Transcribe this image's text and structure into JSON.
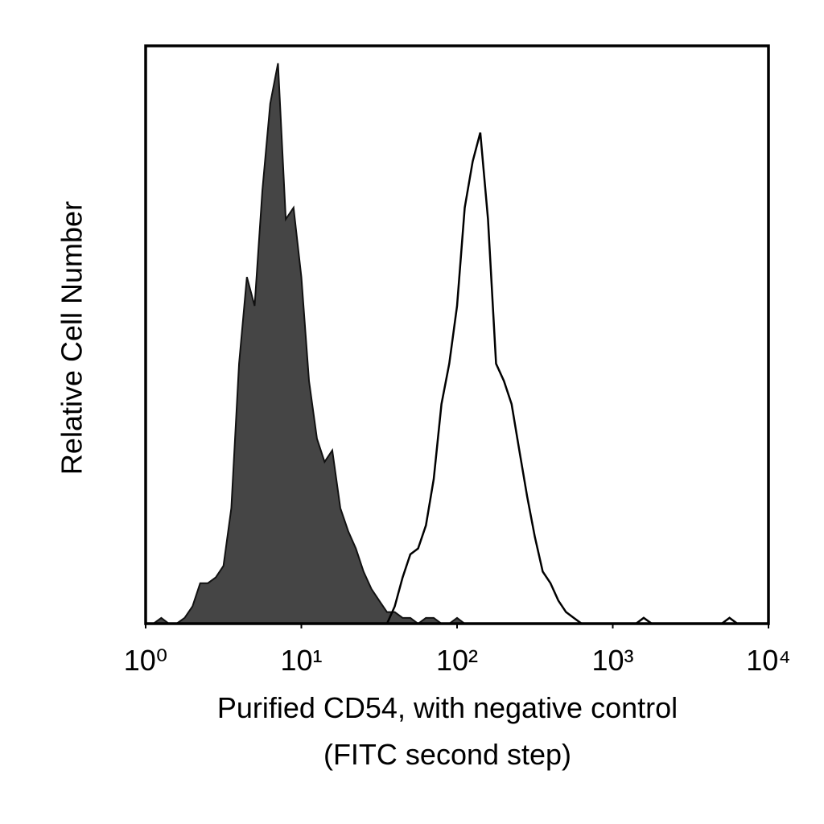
{
  "chart_data": {
    "type": "histogram-line",
    "ylabel": "Relative Cell Number",
    "xlabel": [
      "Purified CD54, with negative control",
      "(FITC second step)"
    ],
    "xscale": "log",
    "xlim": [
      1,
      10000
    ],
    "xticks": [
      {
        "value": 1,
        "label": "10⁰"
      },
      {
        "value": 10,
        "label": "10¹"
      },
      {
        "value": 100,
        "label": "10²"
      },
      {
        "value": 1000,
        "label": "10³"
      },
      {
        "value": 10000,
        "label": "10⁴"
      }
    ],
    "ylim": [
      0,
      100
    ],
    "grid": false,
    "x": [
      1,
      1.12,
      1.26,
      1.41,
      1.58,
      1.78,
      2,
      2.24,
      2.51,
      2.82,
      3.16,
      3.55,
      3.98,
      4.47,
      5.01,
      5.62,
      6.31,
      7.08,
      7.94,
      8.91,
      10,
      11.2,
      12.6,
      14.1,
      15.8,
      17.8,
      20,
      22.4,
      25.1,
      28.2,
      31.6,
      35.5,
      39.8,
      44.7,
      50.1,
      56.2,
      63.1,
      70.8,
      79.4,
      89.1,
      100,
      112,
      126,
      141,
      158,
      178,
      200,
      224,
      251,
      282,
      316,
      355,
      398,
      447,
      501,
      562,
      631,
      708,
      794,
      891,
      1000,
      1120,
      1260,
      1410,
      1580,
      1780,
      2000,
      2240,
      2510,
      2820,
      3160,
      3550,
      3980,
      4470,
      5010,
      5620,
      6310,
      7080,
      7940,
      8910,
      10000
    ],
    "series": [
      {
        "color": "#454545",
        "filled": true,
        "values": [
          0,
          0,
          1,
          0,
          0,
          1,
          3,
          7,
          7,
          8,
          10,
          20,
          45,
          60,
          55,
          75,
          90,
          97,
          70,
          72,
          60,
          42,
          32,
          28,
          30,
          20,
          16,
          13,
          9,
          6,
          4,
          2,
          2,
          1,
          1,
          0,
          1,
          1,
          0,
          0,
          1,
          0,
          0,
          0,
          0,
          0,
          0,
          0,
          0,
          0,
          0,
          0,
          0,
          0,
          0,
          0,
          0,
          0,
          0,
          0,
          0,
          0,
          0,
          0,
          0,
          0,
          0,
          0,
          0,
          0,
          0,
          0,
          0,
          0,
          0,
          0,
          0,
          0,
          0,
          0,
          0
        ]
      },
      {
        "color": "#000000",
        "filled": false,
        "values": [
          0,
          0,
          0,
          0,
          0,
          0,
          0,
          0,
          0,
          0,
          0,
          0,
          0,
          0,
          0,
          0,
          0,
          0,
          0,
          0,
          0,
          0,
          0,
          0,
          0,
          0,
          0,
          0,
          0,
          0,
          0,
          0,
          3,
          8,
          12,
          13,
          17,
          25,
          38,
          45,
          55,
          72,
          80,
          85,
          70,
          45,
          42,
          38,
          30,
          22,
          15,
          9,
          7,
          4,
          2,
          1,
          0,
          0,
          0,
          0,
          0,
          0,
          0,
          0,
          1,
          0,
          0,
          0,
          0,
          0,
          0,
          0,
          0,
          0,
          0,
          1,
          0,
          0,
          0,
          0,
          0
        ]
      }
    ]
  }
}
